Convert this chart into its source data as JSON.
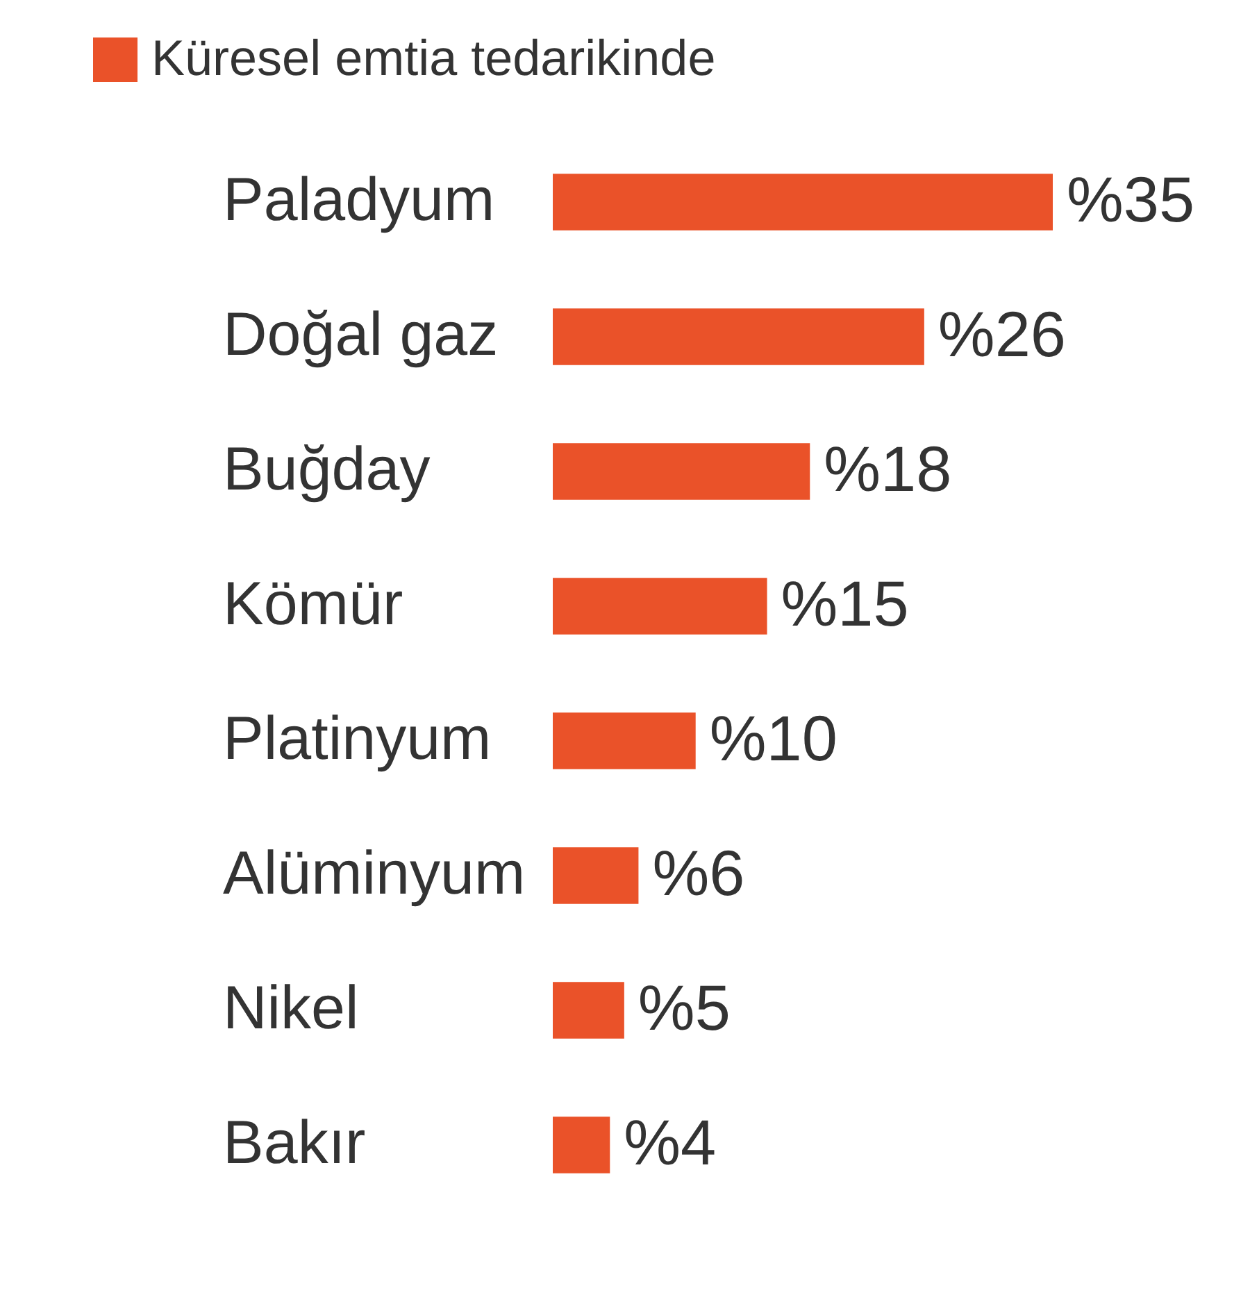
{
  "chart_data": {
    "type": "bar",
    "orientation": "horizontal",
    "categories": [
      "Paladyum",
      "Doğal gaz",
      "Buğday",
      "Kömür",
      "Platinyum",
      "Alüminyum",
      "Nikel",
      "Bakır"
    ],
    "series": [
      {
        "name": "Küresel emtia tedarikinde",
        "color": "#ea5229",
        "values": [
          35,
          26,
          18,
          15,
          10,
          6,
          5,
          4
        ],
        "value_labels": [
          "%35",
          "%26",
          "%18",
          "%15",
          "%10",
          "%6",
          "%5",
          "%4"
        ]
      }
    ],
    "legend": "top left",
    "tick_labels": "y"
  }
}
